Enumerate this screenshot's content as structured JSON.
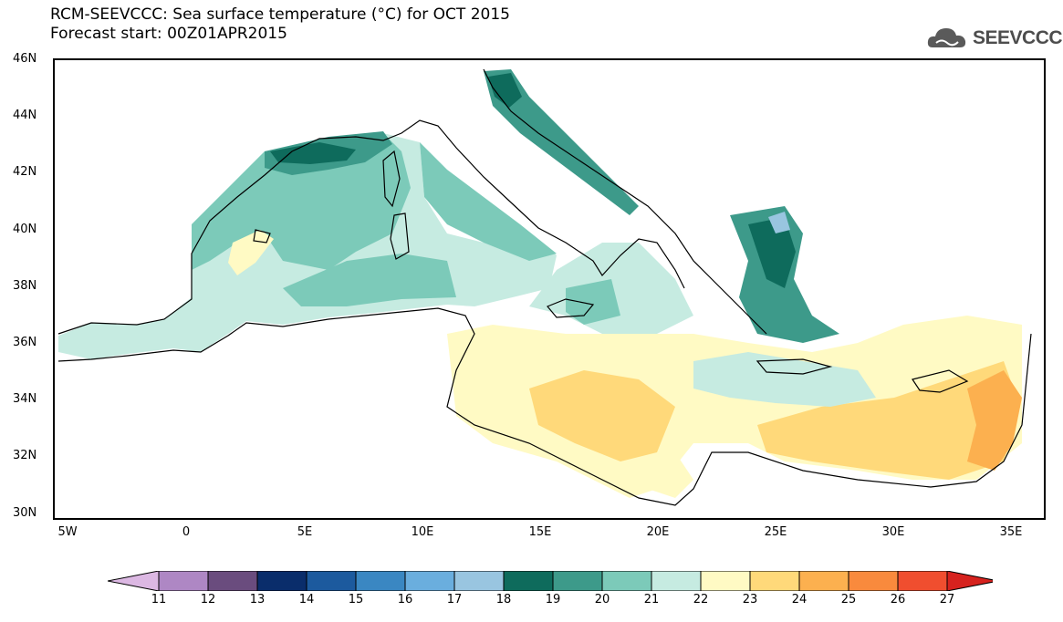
{
  "title": {
    "line1": "RCM-SEEVCCC: Sea surface temperature (°C) for OCT 2015",
    "line2": "Forecast start: 00Z01APR2015"
  },
  "logo": {
    "text": "SEEVCCC",
    "icon": "cloud-logo-icon"
  },
  "map": {
    "extent": {
      "lon_min": -5.5,
      "lon_max": 36.5,
      "lat_min": 29.8,
      "lat_max": 46
    },
    "lat_ticks": [
      "46N",
      "44N",
      "42N",
      "40N",
      "38N",
      "36N",
      "34N",
      "32N",
      "30N"
    ],
    "lon_ticks": [
      "5W",
      "0",
      "5E",
      "10E",
      "15E",
      "20E",
      "25E",
      "30E",
      "35E"
    ],
    "colors": {
      "c19": "#0e6b5c",
      "c20": "#3d9a8a",
      "c21": "#7ccab9",
      "c22": "#c6ebe1",
      "c23": "#fffac4",
      "c24": "#ffd97a",
      "c25": "#fcb04f",
      "c17": "#99c5e0",
      "land": "#ffffff"
    }
  },
  "colorbar": {
    "labels": [
      "11",
      "12",
      "13",
      "14",
      "15",
      "16",
      "17",
      "18",
      "19",
      "20",
      "21",
      "22",
      "23",
      "24",
      "25",
      "26",
      "27"
    ],
    "low_color": "#dcb8e3",
    "high_color": "#d6221e",
    "colors": [
      "#ae87c4",
      "#6a4c7e",
      "#0a2d6b",
      "#1c5a9e",
      "#3a87c2",
      "#6aaede",
      "#99c5e0",
      "#0e6b5c",
      "#3d9a8a",
      "#7ccab9",
      "#c6ebe1",
      "#fffac4",
      "#ffd97a",
      "#fcb04f",
      "#f98a3d",
      "#f04e2f"
    ]
  }
}
